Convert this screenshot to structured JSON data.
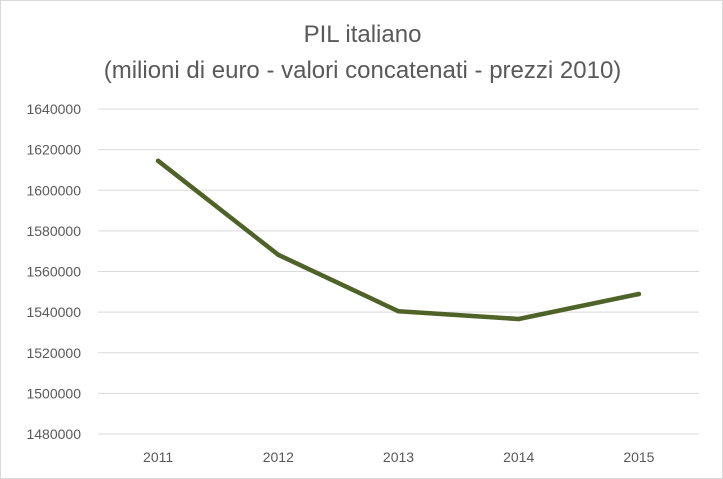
{
  "chart_data": {
    "type": "line",
    "title": "PIL italiano",
    "subtitle": "(milioni di euro - valori concatenati - prezzi 2010)",
    "xlabel": "",
    "ylabel": "",
    "categories": [
      "2011",
      "2012",
      "2013",
      "2014",
      "2015"
    ],
    "series": [
      {
        "name": "PIL italiano",
        "values": [
          1614500,
          1568200,
          1540400,
          1536600,
          1548900
        ],
        "color": "#4f6228"
      }
    ],
    "ylim": [
      1480000,
      1640000
    ],
    "ytick_step": 20000,
    "yticks": [
      "1480000",
      "1500000",
      "1520000",
      "1540000",
      "1560000",
      "1580000",
      "1600000",
      "1620000",
      "1640000"
    ],
    "grid": true,
    "gridColor": "#d9d9d9",
    "legend": "none"
  }
}
